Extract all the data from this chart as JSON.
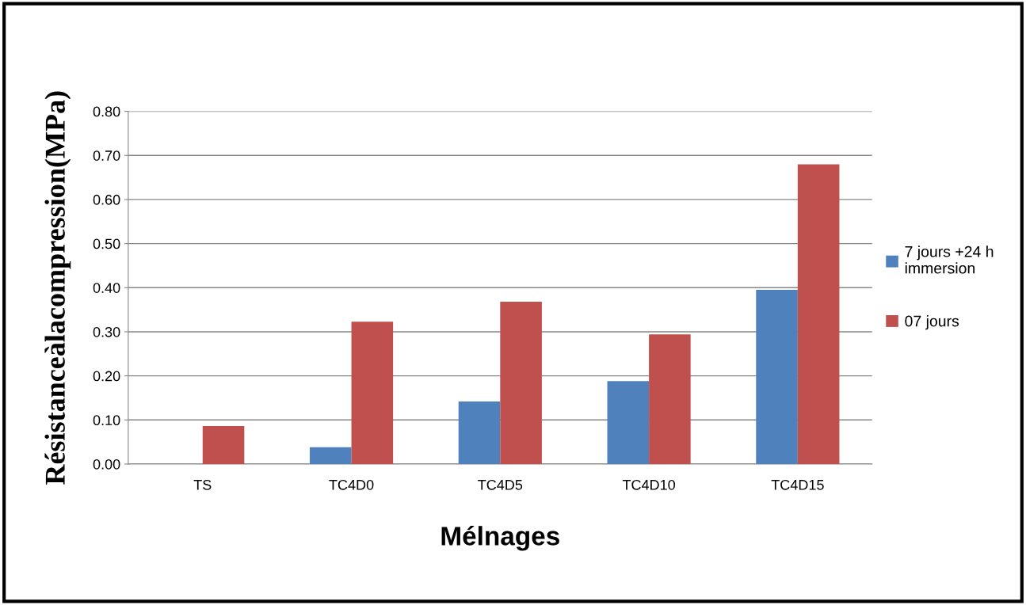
{
  "chart_data": {
    "type": "bar",
    "xlabel": "Mélnages",
    "ylabel": "Résistanceàlacompression(MPa)",
    "categories": [
      "TS",
      "TC4D0",
      "TC4D5",
      "TC4D10",
      "TC4D15"
    ],
    "series": [
      {
        "name": "7 jours +24 h\nimmersion",
        "color": "#4f81bd",
        "values": [
          0,
          0.038,
          0.142,
          0.188,
          0.395
        ]
      },
      {
        "name": "07 jours",
        "color": "#c0504d",
        "values": [
          0.086,
          0.323,
          0.368,
          0.294,
          0.68
        ]
      }
    ],
    "ylim": [
      0,
      0.8
    ],
    "yticks": [
      {
        "value": 0,
        "label": "0.00"
      },
      {
        "value": 0.1,
        "label": "0.10"
      },
      {
        "value": 0.2,
        "label": "0.20"
      },
      {
        "value": 0.3,
        "label": "0.30"
      },
      {
        "value": 0.4,
        "label": "0.40"
      },
      {
        "value": 0.5,
        "label": "0.50"
      },
      {
        "value": 0.6,
        "label": "0.60"
      },
      {
        "value": 0.7,
        "label": "0.70"
      },
      {
        "value": 0.8,
        "label": "0.80"
      }
    ],
    "grid": "y",
    "legend": "right"
  }
}
